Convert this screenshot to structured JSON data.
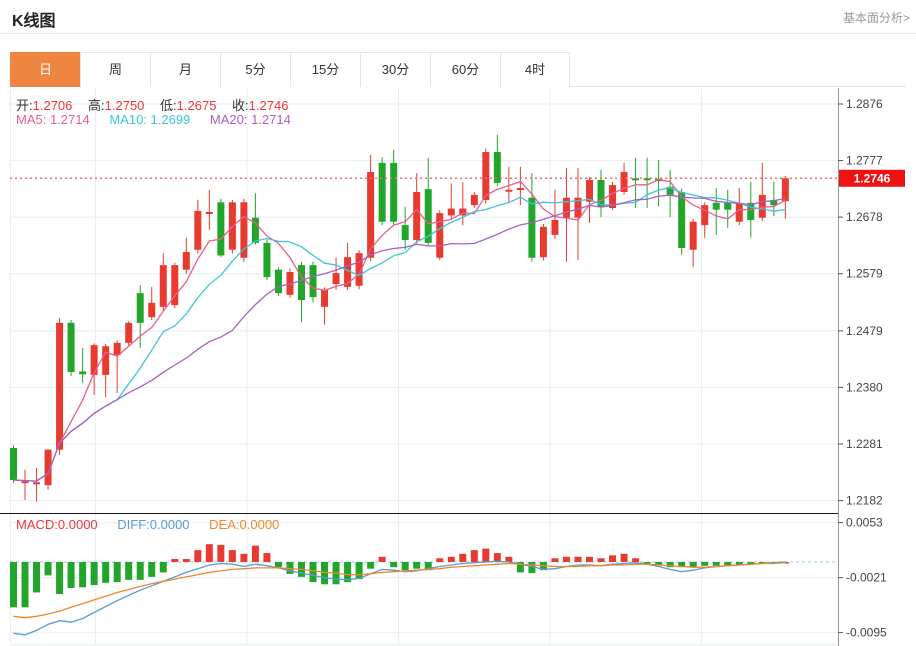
{
  "header": {
    "title": "K线图",
    "link": "基本面分析>"
  },
  "tabs": {
    "items": [
      {
        "label": "日",
        "active": true
      },
      {
        "label": "周"
      },
      {
        "label": "月"
      },
      {
        "label": "5分"
      },
      {
        "label": "15分"
      },
      {
        "label": "30分"
      },
      {
        "label": "60分"
      },
      {
        "label": "4时"
      }
    ]
  },
  "readout": {
    "open_label": "开:",
    "open": "1.2706",
    "high_label": "高:",
    "high": "1.2750",
    "low_label": "低:",
    "low": "1.2675",
    "close_label": "收:",
    "close": "1.2746"
  },
  "ma_readout": {
    "ma5": "MA5: 1.2714",
    "ma10": "MA10: 1.2699",
    "ma20": "MA20: 1.2714"
  },
  "macd_readout": {
    "macd": "MACD:0.0000",
    "diff": "DIFF:0.0000",
    "dea": "DEA:0.0000"
  },
  "colors": {
    "up": "#e93a30",
    "down": "#21a62a",
    "ma5": "#ed5d8c",
    "ma10": "#3cc4dd",
    "ma20": "#a95fc6",
    "diff": "#5b9bd5",
    "dea": "#f0862b",
    "value_red": "#f23535",
    "tab_active": "#ee8641",
    "badge": "#ee1212",
    "dotted": "#f56a6a",
    "grid": "#e7eef5",
    "axis": "#999999",
    "separator": "#1a1a1a",
    "macd_zero_dash": "#a9d7f2"
  },
  "chart_data": {
    "type": "candlestick",
    "title": "K线图",
    "timeframe": "日",
    "price_axis": {
      "ticks": [
        1.2876,
        1.2777,
        1.2678,
        1.2579,
        1.2479,
        1.238,
        1.2281,
        1.2182
      ]
    },
    "current_price": 1.2746,
    "last_bar": {
      "open": 1.2706,
      "high": 1.275,
      "low": 1.2675,
      "close": 1.2746
    },
    "ma_periods": [
      5,
      10,
      20
    ],
    "ma_values_shown": {
      "ma5": 1.2714,
      "ma10": 1.2699,
      "ma20": 1.2714
    },
    "candles": [
      [
        1.2274,
        1.2279,
        1.2213,
        1.2218
      ],
      [
        1.2214,
        1.2236,
        1.2183,
        1.2216
      ],
      [
        1.2212,
        1.2239,
        1.218,
        1.2214
      ],
      [
        1.2209,
        1.2272,
        1.2201,
        1.2271
      ],
      [
        1.2271,
        1.2502,
        1.2262,
        1.2493
      ],
      [
        1.2493,
        1.2498,
        1.24,
        1.2407
      ],
      [
        1.2408,
        1.2449,
        1.2388,
        1.2403
      ],
      [
        1.2402,
        1.2457,
        1.2367,
        1.2454
      ],
      [
        1.2402,
        1.2456,
        1.2363,
        1.2452
      ],
      [
        1.2437,
        1.2462,
        1.237,
        1.2458
      ],
      [
        1.2458,
        1.2496,
        1.2453,
        1.2493
      ],
      [
        1.2545,
        1.2559,
        1.2449,
        1.2493
      ],
      [
        1.2503,
        1.2556,
        1.2498,
        1.2528
      ],
      [
        1.2521,
        1.2615,
        1.2514,
        1.2594
      ],
      [
        1.2524,
        1.2598,
        1.2519,
        1.2594
      ],
      [
        1.2586,
        1.2642,
        1.2579,
        1.2617
      ],
      [
        1.2621,
        1.2708,
        1.2614,
        1.2689
      ],
      [
        1.2685,
        1.2726,
        1.2656,
        1.2687
      ],
      [
        1.2704,
        1.271,
        1.2608,
        1.2611
      ],
      [
        1.2621,
        1.2708,
        1.2614,
        1.2704
      ],
      [
        1.2607,
        1.271,
        1.26,
        1.2704
      ],
      [
        1.2677,
        1.272,
        1.263,
        1.2633
      ],
      [
        1.2633,
        1.2639,
        1.2568,
        1.2573
      ],
      [
        1.2586,
        1.259,
        1.254,
        1.2545
      ],
      [
        1.2542,
        1.2588,
        1.2537,
        1.2582
      ],
      [
        1.2594,
        1.26,
        1.2494,
        1.2533
      ],
      [
        1.2594,
        1.26,
        1.2529,
        1.2538
      ],
      [
        1.2521,
        1.2555,
        1.249,
        1.2551
      ],
      [
        1.2561,
        1.2607,
        1.2551,
        1.258
      ],
      [
        1.2556,
        1.2633,
        1.255,
        1.2608
      ],
      [
        1.2558,
        1.262,
        1.2552,
        1.2615
      ],
      [
        1.2607,
        1.2787,
        1.2601,
        1.2757
      ],
      [
        1.2773,
        1.2783,
        1.2664,
        1.267
      ],
      [
        1.2773,
        1.2796,
        1.2664,
        1.267
      ],
      [
        1.2664,
        1.2696,
        1.2621,
        1.2638
      ],
      [
        1.2638,
        1.2755,
        1.2632,
        1.2722
      ],
      [
        1.2727,
        1.2782,
        1.2627,
        1.2633
      ],
      [
        1.2607,
        1.269,
        1.2603,
        1.2685
      ],
      [
        1.2681,
        1.2737,
        1.2673,
        1.2693
      ],
      [
        1.2681,
        1.2739,
        1.2664,
        1.2693
      ],
      [
        1.2699,
        1.2722,
        1.2694,
        1.2717
      ],
      [
        1.2708,
        1.2798,
        1.2702,
        1.2792
      ],
      [
        1.2792,
        1.2822,
        1.2732,
        1.2738
      ],
      [
        1.2724,
        1.2766,
        1.2703,
        1.2726
      ],
      [
        1.2727,
        1.2766,
        1.2699,
        1.2729
      ],
      [
        1.2712,
        1.2755,
        1.26,
        1.2607
      ],
      [
        1.2608,
        1.2666,
        1.2602,
        1.2661
      ],
      [
        1.2647,
        1.2726,
        1.264,
        1.2673
      ],
      [
        1.2677,
        1.2764,
        1.26,
        1.2712
      ],
      [
        1.2677,
        1.2764,
        1.2603,
        1.2712
      ],
      [
        1.2705,
        1.2748,
        1.2668,
        1.2743
      ],
      [
        1.2743,
        1.2761,
        1.2678,
        1.2696
      ],
      [
        1.2694,
        1.274,
        1.269,
        1.2734
      ],
      [
        1.2722,
        1.2773,
        1.2717,
        1.2757
      ],
      [
        1.2746,
        1.2782,
        1.2694,
        1.2743
      ],
      [
        1.2746,
        1.2782,
        1.2694,
        1.2743
      ],
      [
        1.2745,
        1.2778,
        1.2697,
        1.2741
      ],
      [
        1.2731,
        1.2761,
        1.2678,
        1.2717
      ],
      [
        1.2722,
        1.2728,
        1.2612,
        1.2624
      ],
      [
        1.2621,
        1.2675,
        1.2591,
        1.267
      ],
      [
        1.2664,
        1.2704,
        1.2642,
        1.2699
      ],
      [
        1.2703,
        1.2729,
        1.2647,
        1.2691
      ],
      [
        1.2703,
        1.2726,
        1.2659,
        1.2691
      ],
      [
        1.267,
        1.2729,
        1.2664,
        1.2703
      ],
      [
        1.2703,
        1.274,
        1.2642,
        1.2673
      ],
      [
        1.2677,
        1.2773,
        1.2671,
        1.2717
      ],
      [
        1.2708,
        1.274,
        1.268,
        1.2699
      ],
      [
        1.2706,
        1.275,
        1.2675,
        1.2746
      ]
    ],
    "macd": {
      "axis_ticks": [
        0.0053,
        -0.0021,
        -0.0095
      ],
      "shown_values": {
        "macd": 0.0,
        "diff": 0.0,
        "dea": 0.0
      },
      "histogram": [
        -0.0061,
        -0.0061,
        -0.0041,
        -0.0018,
        -0.0043,
        -0.0035,
        -0.0034,
        -0.0031,
        -0.0028,
        -0.0027,
        -0.0024,
        -0.0024,
        -0.002,
        -0.0014,
        0.0004,
        0.0004,
        0.0016,
        0.0024,
        0.0023,
        0.0016,
        0.0011,
        0.0022,
        0.0012,
        -0.0007,
        -0.0016,
        -0.002,
        -0.0027,
        -0.003,
        -0.003,
        -0.0027,
        -0.0023,
        -0.0009,
        0.0007,
        -0.0007,
        -0.0011,
        -0.0009,
        -0.0011,
        0.0005,
        0.0007,
        0.0011,
        0.0016,
        0.0018,
        0.0012,
        0.0007,
        -0.0014,
        -0.0015,
        -0.0011,
        0.0005,
        0.0007,
        0.0007,
        0.0007,
        0.0005,
        0.0009,
        0.0011,
        0.0005,
        -0.0001,
        -0.0004,
        -0.0007,
        -0.0007,
        -0.0007,
        -0.0005,
        -0.0005,
        -0.0005,
        -0.0004,
        -0.0003,
        -0.0001,
        -0.0001,
        0.0
      ],
      "diff": [
        -0.0096,
        -0.0098,
        -0.0092,
        -0.0084,
        -0.0079,
        -0.0081,
        -0.0076,
        -0.0068,
        -0.006,
        -0.0052,
        -0.0045,
        -0.0038,
        -0.0032,
        -0.0026,
        -0.002,
        -0.0014,
        -0.0009,
        -0.0004,
        -0.0002,
        -0.0003,
        -0.0006,
        -0.0003,
        -0.0005,
        -0.0008,
        -0.0012,
        -0.0015,
        -0.0018,
        -0.0021,
        -0.0023,
        -0.0024,
        -0.0022,
        -0.0016,
        -0.001,
        -0.0011,
        -0.0013,
        -0.0012,
        -0.0009,
        -0.0006,
        -0.0004,
        -0.0002,
        -0.0001,
        0.0,
        0.0001,
        0.0,
        -0.0003,
        -0.0006,
        -0.001,
        -0.0009,
        -0.0006,
        -0.0004,
        -0.0004,
        -0.0005,
        -0.0003,
        -0.0002,
        -0.0001,
        -0.0003,
        -0.0006,
        -0.001,
        -0.0013,
        -0.0011,
        -0.0008,
        -0.0006,
        -0.0005,
        -0.0004,
        -0.0003,
        -0.0002,
        -0.0001,
        0.0
      ],
      "dea": [
        -0.0073,
        -0.0075,
        -0.0073,
        -0.007,
        -0.0066,
        -0.0061,
        -0.0056,
        -0.0051,
        -0.0046,
        -0.0041,
        -0.0037,
        -0.0033,
        -0.0029,
        -0.0026,
        -0.0023,
        -0.002,
        -0.0017,
        -0.0014,
        -0.0012,
        -0.001,
        -0.0009,
        -0.0008,
        -0.0008,
        -0.0008,
        -0.0009,
        -0.001,
        -0.0012,
        -0.0014,
        -0.0015,
        -0.0017,
        -0.0017,
        -0.0016,
        -0.0014,
        -0.0013,
        -0.0012,
        -0.0011,
        -0.001,
        -0.0009,
        -0.0007,
        -0.0006,
        -0.0005,
        -0.0004,
        -0.0003,
        -0.0002,
        -0.0003,
        -0.0004,
        -0.0005,
        -0.0006,
        -0.0006,
        -0.0006,
        -0.0005,
        -0.0005,
        -0.0004,
        -0.0004,
        -0.0003,
        -0.0003,
        -0.0004,
        -0.0005,
        -0.0006,
        -0.0007,
        -0.0007,
        -0.0006,
        -0.0005,
        -0.0004,
        -0.0003,
        -0.0002,
        -0.0002,
        -0.0001
      ]
    }
  }
}
